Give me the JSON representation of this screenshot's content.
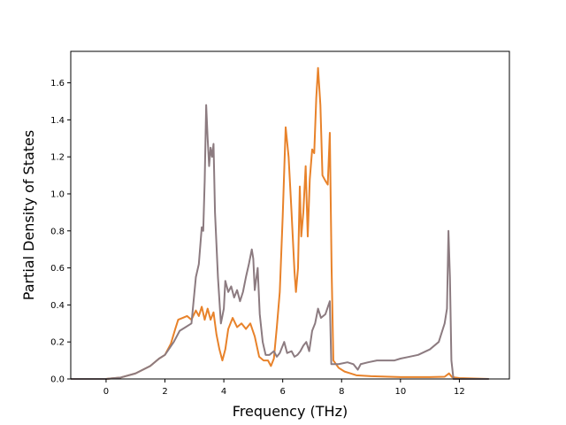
{
  "chart_data": {
    "type": "line",
    "title": "",
    "xlabel": "Frequency (THz)",
    "ylabel": "Partial Density of States",
    "xlim": [
      -1.2,
      13.7
    ],
    "ylim": [
      0.0,
      1.77
    ],
    "xticks": [
      0,
      2,
      4,
      6,
      8,
      10,
      12
    ],
    "yticks": [
      0.0,
      0.2,
      0.4,
      0.6,
      0.8,
      1.0,
      1.2,
      1.4,
      1.6
    ],
    "grid": false,
    "legend": "none",
    "series": [
      {
        "color": "#e8822a",
        "points": [
          [
            -1.2,
            0.0
          ],
          [
            0.0,
            0.0
          ],
          [
            0.5,
            0.008
          ],
          [
            1.0,
            0.03
          ],
          [
            1.5,
            0.07
          ],
          [
            1.8,
            0.11
          ],
          [
            2.0,
            0.13
          ],
          [
            2.2,
            0.19
          ],
          [
            2.35,
            0.27
          ],
          [
            2.45,
            0.32
          ],
          [
            2.6,
            0.33
          ],
          [
            2.75,
            0.34
          ],
          [
            2.9,
            0.32
          ],
          [
            3.05,
            0.37
          ],
          [
            3.15,
            0.34
          ],
          [
            3.25,
            0.39
          ],
          [
            3.35,
            0.32
          ],
          [
            3.45,
            0.38
          ],
          [
            3.55,
            0.32
          ],
          [
            3.65,
            0.36
          ],
          [
            3.75,
            0.24
          ],
          [
            3.85,
            0.16
          ],
          [
            3.95,
            0.1
          ],
          [
            4.05,
            0.16
          ],
          [
            4.15,
            0.27
          ],
          [
            4.3,
            0.33
          ],
          [
            4.45,
            0.28
          ],
          [
            4.6,
            0.3
          ],
          [
            4.75,
            0.27
          ],
          [
            4.9,
            0.3
          ],
          [
            5.05,
            0.23
          ],
          [
            5.2,
            0.12
          ],
          [
            5.35,
            0.1
          ],
          [
            5.5,
            0.1
          ],
          [
            5.6,
            0.07
          ],
          [
            5.7,
            0.11
          ],
          [
            5.8,
            0.28
          ],
          [
            5.9,
            0.47
          ],
          [
            6.0,
            0.88
          ],
          [
            6.1,
            1.36
          ],
          [
            6.2,
            1.2
          ],
          [
            6.3,
            0.9
          ],
          [
            6.4,
            0.58
          ],
          [
            6.45,
            0.47
          ],
          [
            6.52,
            0.6
          ],
          [
            6.58,
            1.04
          ],
          [
            6.63,
            0.77
          ],
          [
            6.7,
            0.9
          ],
          [
            6.78,
            1.15
          ],
          [
            6.85,
            0.77
          ],
          [
            6.92,
            1.08
          ],
          [
            7.0,
            1.24
          ],
          [
            7.07,
            1.22
          ],
          [
            7.14,
            1.52
          ],
          [
            7.2,
            1.68
          ],
          [
            7.28,
            1.48
          ],
          [
            7.35,
            1.1
          ],
          [
            7.45,
            1.07
          ],
          [
            7.53,
            1.05
          ],
          [
            7.6,
            1.33
          ],
          [
            7.66,
            0.6
          ],
          [
            7.72,
            0.1
          ],
          [
            7.9,
            0.06
          ],
          [
            8.1,
            0.04
          ],
          [
            8.3,
            0.03
          ],
          [
            8.5,
            0.02
          ],
          [
            9.0,
            0.015
          ],
          [
            10.0,
            0.01
          ],
          [
            11.0,
            0.01
          ],
          [
            11.5,
            0.012
          ],
          [
            11.65,
            0.03
          ],
          [
            11.75,
            0.01
          ],
          [
            12.0,
            0.005
          ],
          [
            13.0,
            0.0
          ]
        ]
      },
      {
        "color": "#8c7b80",
        "points": [
          [
            -1.2,
            0.0
          ],
          [
            0.0,
            0.0
          ],
          [
            0.5,
            0.008
          ],
          [
            1.0,
            0.03
          ],
          [
            1.5,
            0.07
          ],
          [
            1.8,
            0.11
          ],
          [
            2.0,
            0.13
          ],
          [
            2.3,
            0.2
          ],
          [
            2.5,
            0.26
          ],
          [
            2.7,
            0.28
          ],
          [
            2.9,
            0.3
          ],
          [
            3.05,
            0.55
          ],
          [
            3.15,
            0.62
          ],
          [
            3.25,
            0.82
          ],
          [
            3.3,
            0.8
          ],
          [
            3.35,
            1.07
          ],
          [
            3.4,
            1.48
          ],
          [
            3.45,
            1.3
          ],
          [
            3.5,
            1.15
          ],
          [
            3.55,
            1.25
          ],
          [
            3.6,
            1.2
          ],
          [
            3.65,
            1.27
          ],
          [
            3.7,
            0.9
          ],
          [
            3.8,
            0.55
          ],
          [
            3.9,
            0.3
          ],
          [
            3.95,
            0.34
          ],
          [
            4.0,
            0.38
          ],
          [
            4.05,
            0.53
          ],
          [
            4.15,
            0.47
          ],
          [
            4.25,
            0.5
          ],
          [
            4.35,
            0.44
          ],
          [
            4.45,
            0.48
          ],
          [
            4.55,
            0.42
          ],
          [
            4.65,
            0.47
          ],
          [
            4.75,
            0.55
          ],
          [
            4.85,
            0.62
          ],
          [
            4.95,
            0.7
          ],
          [
            5.0,
            0.65
          ],
          [
            5.05,
            0.48
          ],
          [
            5.15,
            0.6
          ],
          [
            5.22,
            0.35
          ],
          [
            5.32,
            0.2
          ],
          [
            5.42,
            0.13
          ],
          [
            5.55,
            0.13
          ],
          [
            5.7,
            0.15
          ],
          [
            5.8,
            0.12
          ],
          [
            5.9,
            0.14
          ],
          [
            6.05,
            0.2
          ],
          [
            6.15,
            0.14
          ],
          [
            6.3,
            0.15
          ],
          [
            6.4,
            0.12
          ],
          [
            6.5,
            0.13
          ],
          [
            6.6,
            0.15
          ],
          [
            6.7,
            0.18
          ],
          [
            6.8,
            0.2
          ],
          [
            6.9,
            0.15
          ],
          [
            7.0,
            0.26
          ],
          [
            7.1,
            0.3
          ],
          [
            7.2,
            0.38
          ],
          [
            7.3,
            0.33
          ],
          [
            7.45,
            0.35
          ],
          [
            7.6,
            0.42
          ],
          [
            7.65,
            0.08
          ],
          [
            7.9,
            0.08
          ],
          [
            8.2,
            0.09
          ],
          [
            8.4,
            0.08
          ],
          [
            8.55,
            0.05
          ],
          [
            8.65,
            0.08
          ],
          [
            8.9,
            0.09
          ],
          [
            9.2,
            0.1
          ],
          [
            9.5,
            0.1
          ],
          [
            9.8,
            0.1
          ],
          [
            10.0,
            0.11
          ],
          [
            10.3,
            0.12
          ],
          [
            10.6,
            0.13
          ],
          [
            11.0,
            0.16
          ],
          [
            11.3,
            0.2
          ],
          [
            11.5,
            0.3
          ],
          [
            11.58,
            0.38
          ],
          [
            11.63,
            0.8
          ],
          [
            11.68,
            0.55
          ],
          [
            11.73,
            0.1
          ],
          [
            11.8,
            0.0
          ],
          [
            13.0,
            0.0
          ]
        ]
      }
    ]
  }
}
